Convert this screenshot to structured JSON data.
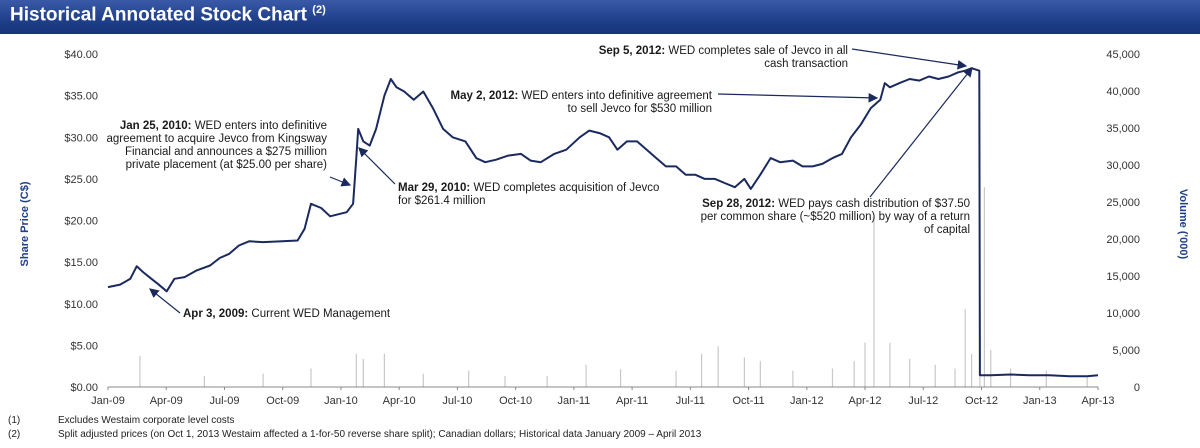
{
  "title": "Historical Annotated Stock Chart",
  "title_sup": "(2)",
  "chart_data": {
    "type": "line",
    "xlabel": "",
    "ylabel": "Share Price (C$)",
    "y2label": "Volume ('000)",
    "x_ticks": [
      "Jan-09",
      "Apr-09",
      "Jul-09",
      "Oct-09",
      "Jan-10",
      "Apr-10",
      "Jul-10",
      "Oct-10",
      "Jan-11",
      "Apr-11",
      "Jul-11",
      "Oct-11",
      "Jan-12",
      "Apr-12",
      "Jul-12",
      "Oct-12",
      "Jan-13",
      "Apr-13"
    ],
    "y_ticks": [
      "$0.00",
      "$5.00",
      "$10.00",
      "$15.00",
      "$20.00",
      "$25.00",
      "$30.00",
      "$35.00",
      "$40.00"
    ],
    "y2_ticks": [
      "0",
      "5,000",
      "10,000",
      "15,000",
      "20,000",
      "25,000",
      "30,000",
      "35,000",
      "40,000",
      "45,000"
    ],
    "ylim": [
      0,
      40
    ],
    "y2lim": [
      0,
      45000
    ],
    "x_range": [
      "2009-01-01",
      "2013-04-01"
    ],
    "series": [
      {
        "type": "line",
        "color": "#1b2a5e",
        "points": [
          [
            "2009-01-01",
            12.0
          ],
          [
            "2009-01-20",
            12.3
          ],
          [
            "2009-02-05",
            13.0
          ],
          [
            "2009-02-15",
            14.5
          ],
          [
            "2009-02-25",
            13.8
          ],
          [
            "2009-03-10",
            13.0
          ],
          [
            "2009-03-20",
            12.4
          ],
          [
            "2009-04-03",
            11.5
          ],
          [
            "2009-04-15",
            13.0
          ],
          [
            "2009-05-01",
            13.2
          ],
          [
            "2009-05-20",
            14.0
          ],
          [
            "2009-06-10",
            14.6
          ],
          [
            "2009-06-25",
            15.5
          ],
          [
            "2009-07-10",
            16.0
          ],
          [
            "2009-07-25",
            17.0
          ],
          [
            "2009-08-10",
            17.5
          ],
          [
            "2009-09-01",
            17.4
          ],
          [
            "2009-10-01",
            17.5
          ],
          [
            "2009-10-25",
            17.6
          ],
          [
            "2009-11-05",
            19.0
          ],
          [
            "2009-11-15",
            22.0
          ],
          [
            "2009-12-01",
            21.5
          ],
          [
            "2009-12-15",
            20.5
          ],
          [
            "2010-01-10",
            21.0
          ],
          [
            "2010-01-20",
            22.0
          ],
          [
            "2010-01-25",
            27.5
          ],
          [
            "2010-01-28",
            31.0
          ],
          [
            "2010-02-05",
            29.5
          ],
          [
            "2010-02-15",
            29.0
          ],
          [
            "2010-02-25",
            31.0
          ],
          [
            "2010-03-10",
            35.0
          ],
          [
            "2010-03-20",
            37.0
          ],
          [
            "2010-03-29",
            36.0
          ],
          [
            "2010-04-10",
            35.5
          ],
          [
            "2010-04-25",
            34.5
          ],
          [
            "2010-05-10",
            35.5
          ],
          [
            "2010-05-25",
            33.5
          ],
          [
            "2010-06-10",
            31.0
          ],
          [
            "2010-06-25",
            30.0
          ],
          [
            "2010-07-15",
            29.5
          ],
          [
            "2010-08-01",
            27.5
          ],
          [
            "2010-08-15",
            27.0
          ],
          [
            "2010-09-01",
            27.3
          ],
          [
            "2010-09-20",
            27.8
          ],
          [
            "2010-10-10",
            28.0
          ],
          [
            "2010-10-25",
            27.2
          ],
          [
            "2010-11-10",
            27.0
          ],
          [
            "2010-12-01",
            28.0
          ],
          [
            "2010-12-20",
            28.5
          ],
          [
            "2011-01-10",
            30.0
          ],
          [
            "2011-01-25",
            30.8
          ],
          [
            "2011-02-10",
            30.5
          ],
          [
            "2011-02-25",
            30.0
          ],
          [
            "2011-03-10",
            28.5
          ],
          [
            "2011-03-25",
            29.5
          ],
          [
            "2011-04-10",
            29.5
          ],
          [
            "2011-04-25",
            28.5
          ],
          [
            "2011-05-10",
            27.5
          ],
          [
            "2011-05-25",
            26.5
          ],
          [
            "2011-06-10",
            26.5
          ],
          [
            "2011-06-25",
            25.5
          ],
          [
            "2011-07-10",
            25.5
          ],
          [
            "2011-07-25",
            25.0
          ],
          [
            "2011-08-10",
            25.0
          ],
          [
            "2011-08-25",
            24.5
          ],
          [
            "2011-09-10",
            24.0
          ],
          [
            "2011-09-25",
            25.0
          ],
          [
            "2011-10-05",
            23.8
          ],
          [
            "2011-10-20",
            25.5
          ],
          [
            "2011-11-05",
            27.5
          ],
          [
            "2011-11-20",
            27.0
          ],
          [
            "2011-12-10",
            27.2
          ],
          [
            "2011-12-25",
            26.5
          ],
          [
            "2012-01-10",
            26.5
          ],
          [
            "2012-01-25",
            26.8
          ],
          [
            "2012-02-10",
            27.5
          ],
          [
            "2012-02-25",
            28.0
          ],
          [
            "2012-03-10",
            30.0
          ],
          [
            "2012-03-25",
            31.5
          ],
          [
            "2012-04-10",
            33.5
          ],
          [
            "2012-04-25",
            34.5
          ],
          [
            "2012-05-02",
            36.5
          ],
          [
            "2012-05-10",
            36.0
          ],
          [
            "2012-05-25",
            36.5
          ],
          [
            "2012-06-10",
            37.0
          ],
          [
            "2012-06-25",
            36.8
          ],
          [
            "2012-07-10",
            37.3
          ],
          [
            "2012-07-25",
            37.0
          ],
          [
            "2012-08-10",
            37.3
          ],
          [
            "2012-08-25",
            37.8
          ],
          [
            "2012-09-05",
            38.0
          ],
          [
            "2012-09-15",
            38.3
          ],
          [
            "2012-09-27",
            38.0
          ],
          [
            "2012-09-28",
            1.4
          ],
          [
            "2012-10-15",
            1.4
          ],
          [
            "2012-11-15",
            1.5
          ],
          [
            "2012-12-15",
            1.4
          ],
          [
            "2013-01-15",
            1.4
          ],
          [
            "2013-02-15",
            1.3
          ],
          [
            "2013-03-15",
            1.3
          ],
          [
            "2013-04-01",
            1.4
          ]
        ]
      },
      {
        "type": "bar",
        "color": "#c8c8c8",
        "axis": "y2",
        "points": [
          [
            "2009-02-20",
            4200
          ],
          [
            "2009-06-01",
            1500
          ],
          [
            "2009-09-01",
            1800
          ],
          [
            "2009-11-15",
            2500
          ],
          [
            "2010-01-25",
            4500
          ],
          [
            "2010-02-05",
            3800
          ],
          [
            "2010-03-10",
            4500
          ],
          [
            "2010-05-10",
            1800
          ],
          [
            "2010-07-20",
            2200
          ],
          [
            "2010-09-15",
            1500
          ],
          [
            "2010-11-20",
            1500
          ],
          [
            "2011-01-20",
            3000
          ],
          [
            "2011-03-15",
            2400
          ],
          [
            "2011-06-10",
            2200
          ],
          [
            "2011-07-20",
            4500
          ],
          [
            "2011-08-15",
            5500
          ],
          [
            "2011-09-25",
            4000
          ],
          [
            "2011-10-20",
            3500
          ],
          [
            "2011-12-10",
            2200
          ],
          [
            "2012-02-10",
            2500
          ],
          [
            "2012-03-15",
            3500
          ],
          [
            "2012-04-01",
            6000
          ],
          [
            "2012-04-15",
            23000
          ],
          [
            "2012-05-10",
            6000
          ],
          [
            "2012-06-10",
            3800
          ],
          [
            "2012-07-20",
            3000
          ],
          [
            "2012-08-20",
            2500
          ],
          [
            "2012-09-05",
            10500
          ],
          [
            "2012-09-15",
            4500
          ],
          [
            "2012-09-28",
            8500
          ],
          [
            "2012-10-05",
            27000
          ],
          [
            "2012-10-15",
            5000
          ],
          [
            "2012-11-15",
            2500
          ],
          [
            "2013-01-10",
            2200
          ],
          [
            "2013-03-15",
            1500
          ]
        ]
      }
    ],
    "annotations": [
      {
        "date": "Jan 25, 2010:",
        "text": "WED enters into definitive agreement to acquire Jevco from Kingsway Financial and announces a $275 million private placement  (at $25.00 per share)"
      },
      {
        "date": "Mar 29, 2010:",
        "text": "WED completes acquisition of Jevco for $261.4 million"
      },
      {
        "date": "Apr 3, 2009:",
        "text": "Current WED Management"
      },
      {
        "date": "May 2, 2012:",
        "text": "WED enters into definitive agreement to sell Jevco for $530 million"
      },
      {
        "date": "Sep 5, 2012:",
        "text": "WED completes sale of Jevco in all cash transaction"
      },
      {
        "date": "Sep 28, 2012:",
        "text": "WED pays cash distribution of $37.50 per common share (~$520 million) by way of a return of capital"
      }
    ]
  },
  "footnotes": [
    {
      "num": "(1)",
      "text": "Excludes Westaim corporate level costs"
    },
    {
      "num": "(2)",
      "text": "Split adjusted prices (on Oct 1, 2013 Westaim affected a 1-for-50 reverse share split); Canadian dollars; Historical data January 2009 – April 2013"
    }
  ]
}
